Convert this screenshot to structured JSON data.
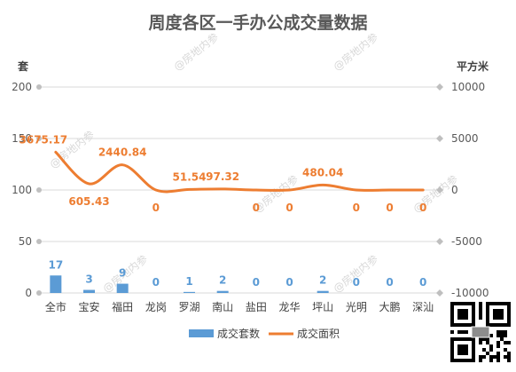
{
  "colors": {
    "bar": "#5B9BD5",
    "line": "#ED7D31",
    "grid": "#D9D9D9",
    "axis_marker": "#BFBFBF"
  },
  "watermark": "@房地内参",
  "chart_data": {
    "type": "bar",
    "title": "周度各区一手办公成交量数据",
    "y_left_unit": "套",
    "y_right_unit": "平方米",
    "ylim": [
      0,
      200
    ],
    "y2lim": [
      -10000,
      10000
    ],
    "y_ticks": [
      "0",
      "50",
      "100",
      "150",
      "200"
    ],
    "y2_ticks": [
      "-10000",
      "-5000",
      "0",
      "5000",
      "10000"
    ],
    "categories": [
      "全市",
      "宝安",
      "福田",
      "龙岗",
      "罗湖",
      "南山",
      "盐田",
      "龙华",
      "坪山",
      "光明",
      "大鹏",
      "深汕"
    ],
    "series": [
      {
        "name": "成交套数",
        "type": "bar",
        "axis": "left",
        "values": [
          17,
          3,
          9,
          0,
          1,
          2,
          0,
          0,
          2,
          0,
          0,
          0
        ],
        "labels": [
          "17",
          "3",
          "9",
          "0",
          "1",
          "2",
          "0",
          "0",
          "2",
          "0",
          "0",
          "0"
        ]
      },
      {
        "name": "成交面积",
        "type": "line",
        "axis": "right",
        "smooth": true,
        "values": [
          3675.17,
          605.43,
          2440.84,
          0,
          51.54,
          97.32,
          0,
          0,
          480.04,
          0,
          0,
          0
        ],
        "labels": [
          "3675.17",
          "605.43",
          "2440.84",
          "0",
          "51.54",
          "97.32",
          "0",
          "0",
          "480.04",
          "0",
          "0",
          "0"
        ]
      }
    ],
    "grid": true,
    "legend": "bottom"
  }
}
